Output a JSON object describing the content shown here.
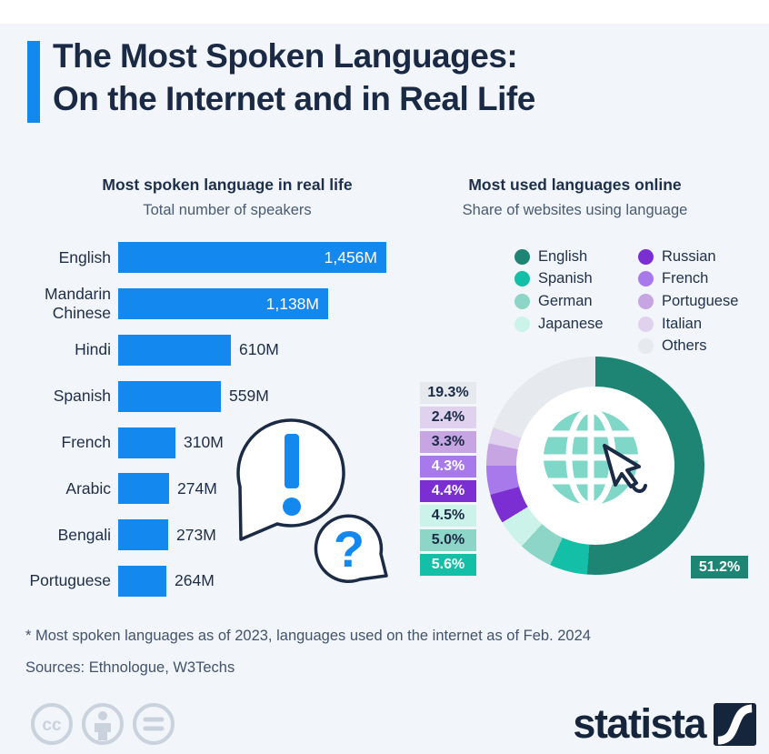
{
  "header": {
    "title_line1": "The Most Spoken Languages:",
    "title_line2": "On the Internet and in Real Life",
    "accent_color": "#1389f0"
  },
  "left_chart": {
    "title": "Most spoken language in real life",
    "subtitle": "Total number of speakers",
    "bar_color": "#1389f0",
    "bars": [
      {
        "label": "English",
        "value": 1456,
        "display": "1,456M"
      },
      {
        "label": "Mandarin Chinese",
        "value": 1138,
        "display": "1,138M"
      },
      {
        "label": "Hindi",
        "value": 610,
        "display": "610M"
      },
      {
        "label": "Spanish",
        "value": 559,
        "display": "559M"
      },
      {
        "label": "French",
        "value": 310,
        "display": "310M"
      },
      {
        "label": "Arabic",
        "value": 274,
        "display": "274M"
      },
      {
        "label": "Bengali",
        "value": 273,
        "display": "273M"
      },
      {
        "label": "Portuguese",
        "value": 264,
        "display": "264M"
      }
    ]
  },
  "right_chart": {
    "title": "Most used languages online",
    "subtitle": "Share of websites using language",
    "legend_col1": [
      {
        "label": "English",
        "color": "#1e8575"
      },
      {
        "label": "Spanish",
        "color": "#13bfa6"
      },
      {
        "label": "German",
        "color": "#8dd5c6"
      },
      {
        "label": "Japanese",
        "color": "#cbf3ea"
      }
    ],
    "legend_col2": [
      {
        "label": "Russian",
        "color": "#7b2fd3"
      },
      {
        "label": "French",
        "color": "#a779ea"
      },
      {
        "label": "Portuguese",
        "color": "#c7a4e2"
      },
      {
        "label": "Italian",
        "color": "#e0d1ef"
      },
      {
        "label": "Others",
        "color": "#e6eaee"
      }
    ],
    "percent_labels": [
      {
        "text": "19.3%",
        "bg": "#e6eaee",
        "fg": "#1b2b45"
      },
      {
        "text": "2.4%",
        "bg": "#e0d1ef",
        "fg": "#1b2b45"
      },
      {
        "text": "3.3%",
        "bg": "#c7a4e2",
        "fg": "#1b2b45"
      },
      {
        "text": "4.3%",
        "bg": "#a779ea",
        "fg": "#ffffff"
      },
      {
        "text": "4.4%",
        "bg": "#7b2fd3",
        "fg": "#ffffff"
      },
      {
        "text": "4.5%",
        "bg": "#cbf3ea",
        "fg": "#1b2b45"
      },
      {
        "text": "5.0%",
        "bg": "#8dd5c6",
        "fg": "#1b2b45"
      },
      {
        "text": "5.6%",
        "bg": "#13bfa6",
        "fg": "#ffffff"
      }
    ],
    "english_label": {
      "text": "51.2%",
      "bg": "#1e8575",
      "fg": "#ffffff"
    }
  },
  "bubbles": {
    "exclamation": "!",
    "question": "?"
  },
  "footer": {
    "note": "* Most spoken languages as of 2023, languages used on the internet as of Feb. 2024",
    "sources": "Sources: Ethnologue, W3Techs",
    "brand": "statista"
  },
  "chart_data": [
    {
      "type": "bar",
      "orientation": "horizontal",
      "title": "Most spoken language in real life",
      "subtitle": "Total number of speakers",
      "categories": [
        "English",
        "Mandarin Chinese",
        "Hindi",
        "Spanish",
        "French",
        "Arabic",
        "Bengali",
        "Portuguese"
      ],
      "values": [
        1456,
        1138,
        610,
        559,
        310,
        274,
        273,
        264
      ],
      "value_labels": [
        "1,456M",
        "1,138M",
        "610M",
        "559M",
        "310M",
        "274M",
        "273M",
        "264M"
      ],
      "unit": "million speakers",
      "bar_color": "#1389f0",
      "xlim": [
        0,
        1456
      ],
      "grid": false
    },
    {
      "type": "pie",
      "subtype": "donut",
      "title": "Most used languages online",
      "subtitle": "Share of websites using language",
      "categories": [
        "English",
        "Spanish",
        "German",
        "Japanese",
        "Russian",
        "French",
        "Portuguese",
        "Italian",
        "Others"
      ],
      "values": [
        51.2,
        5.6,
        5.0,
        4.5,
        4.4,
        4.3,
        3.3,
        2.4,
        19.3
      ],
      "labels": [
        "51.2%",
        "5.6%",
        "5.0%",
        "4.5%",
        "4.4%",
        "4.3%",
        "3.3%",
        "2.4%",
        "19.3%"
      ],
      "colors": [
        "#1e8575",
        "#13bfa6",
        "#8dd5c6",
        "#cbf3ea",
        "#7b2fd3",
        "#a779ea",
        "#c7a4e2",
        "#e0d1ef",
        "#e6eaee"
      ],
      "start_angle": "top",
      "direction": "clockwise",
      "legend_position": "top-right"
    }
  ]
}
